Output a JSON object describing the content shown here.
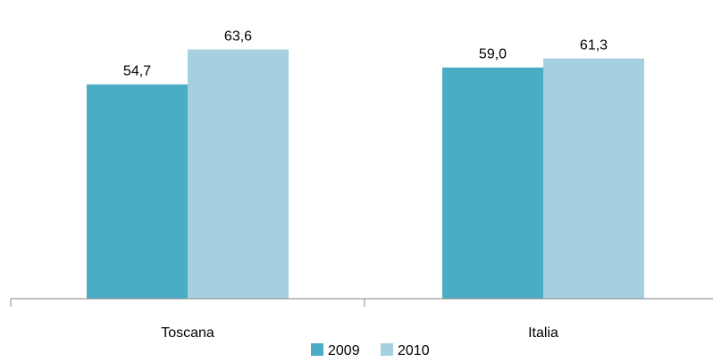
{
  "chart_data": {
    "type": "bar",
    "categories": [
      "Toscana",
      "Italia"
    ],
    "series": [
      {
        "name": "2009",
        "color": "#4BACC6",
        "values": [
          54.7,
          59.0
        ],
        "labels": [
          "54,7",
          "59,0"
        ]
      },
      {
        "name": "2010",
        "color": "#A5D0DF",
        "values": [
          63.6,
          61.3
        ],
        "labels": [
          "63,6",
          "61,3"
        ]
      }
    ],
    "ylim": [
      0,
      70
    ],
    "grid": false,
    "legend": "bottom",
    "title": "",
    "xlabel": "",
    "ylabel": ""
  }
}
